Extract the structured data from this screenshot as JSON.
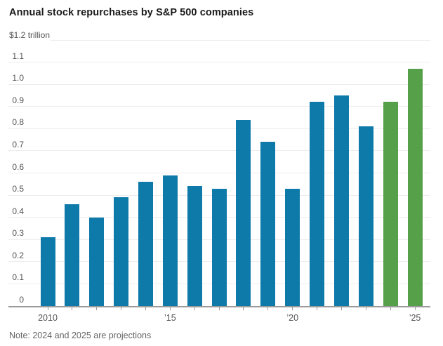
{
  "chart_data": {
    "type": "bar",
    "title": "Annual stock repurchases by S&P 500 companies",
    "unit_label": "$1.2 trillion",
    "note": "Note: 2024 and 2025 are projections",
    "xlabel": "",
    "ylabel": "",
    "ylim": [
      0,
      1.2
    ],
    "grid": "horizontal",
    "legend": "none",
    "categories": [
      "2010",
      "2011",
      "2012",
      "2013",
      "2014",
      "2015",
      "2016",
      "2017",
      "2018",
      "2019",
      "2020",
      "2021",
      "2022",
      "2023",
      "2024",
      "2025"
    ],
    "values": [
      0.31,
      0.46,
      0.4,
      0.49,
      0.56,
      0.59,
      0.54,
      0.53,
      0.84,
      0.74,
      0.53,
      0.92,
      0.95,
      0.81,
      0.92,
      1.07
    ],
    "projection_categories": [
      "2024",
      "2025"
    ],
    "colors": {
      "bar": "#0e7aa9",
      "projection": "#57a04a",
      "gridline": "#ececec",
      "axis": "#9b9b9b",
      "title_text": "#1a1a1a",
      "label_text": "#555555"
    },
    "yticks": [
      {
        "value": 0,
        "label": "0"
      },
      {
        "value": 0.1,
        "label": "0.1"
      },
      {
        "value": 0.2,
        "label": "0.2"
      },
      {
        "value": 0.3,
        "label": "0.3"
      },
      {
        "value": 0.4,
        "label": "0.4"
      },
      {
        "value": 0.5,
        "label": "0.5"
      },
      {
        "value": 0.6,
        "label": "0.6"
      },
      {
        "value": 0.7,
        "label": "0.7"
      },
      {
        "value": 0.8,
        "label": "0.8"
      },
      {
        "value": 0.9,
        "label": "0.9"
      },
      {
        "value": 1.0,
        "label": "1.0"
      },
      {
        "value": 1.1,
        "label": "1.1"
      }
    ],
    "xticks": [
      {
        "index": 0,
        "label": "2010"
      },
      {
        "index": 5,
        "label": "’15"
      },
      {
        "index": 10,
        "label": "’20"
      },
      {
        "index": 15,
        "label": "’25"
      }
    ]
  }
}
